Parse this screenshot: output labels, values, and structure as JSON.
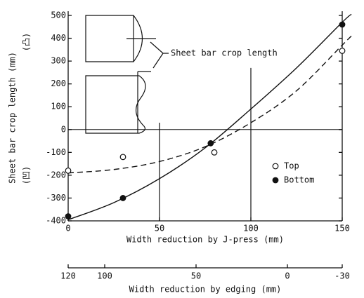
{
  "chart_data": {
    "type": "scatter",
    "xlabel": "Width reduction by J-press  (mm)",
    "ylabel": "Sheet  bar  crop  length   (mm)",
    "ylabel_top_note": "(凸)",
    "ylabel_bottom_note": "(凹)",
    "inset_label": "Sheet bar crop length",
    "xlim": [
      0,
      150
    ],
    "xticks": [
      0,
      50,
      100,
      150
    ],
    "ylim": [
      -400,
      500
    ],
    "yticks": [
      -400,
      -300,
      -200,
      -100,
      0,
      100,
      200,
      300,
      400,
      500
    ],
    "x2label": "Width reduction by edging    (mm)",
    "x2lim": [
      120,
      -30
    ],
    "x2ticks": [
      120,
      100,
      50,
      0,
      -30
    ],
    "series": [
      {
        "name": "Top",
        "marker": "open",
        "color": "#111",
        "x": [
          0,
          30,
          80,
          150
        ],
        "values": [
          -180,
          -120,
          -100,
          345
        ]
      },
      {
        "name": "Bottom",
        "marker": "filled",
        "color": "#111",
        "x": [
          0,
          30,
          78,
          150
        ],
        "values": [
          -380,
          -300,
          -60,
          460
        ]
      }
    ],
    "curves": [
      {
        "style": "solid",
        "x": [
          0,
          25,
          50,
          75,
          100,
          125,
          150,
          155
        ],
        "values": [
          -395,
          -320,
          -215,
          -80,
          90,
          270,
          470,
          505
        ]
      },
      {
        "style": "dashed",
        "x": [
          0,
          25,
          50,
          75,
          100,
          125,
          150,
          155
        ],
        "values": [
          -190,
          -175,
          -140,
          -75,
          30,
          170,
          370,
          410
        ]
      }
    ],
    "vlines": [
      {
        "x": 50,
        "y": [
          -400,
          30
        ]
      },
      {
        "x": 100,
        "y": [
          -400,
          270
        ]
      }
    ],
    "hline": 0
  }
}
